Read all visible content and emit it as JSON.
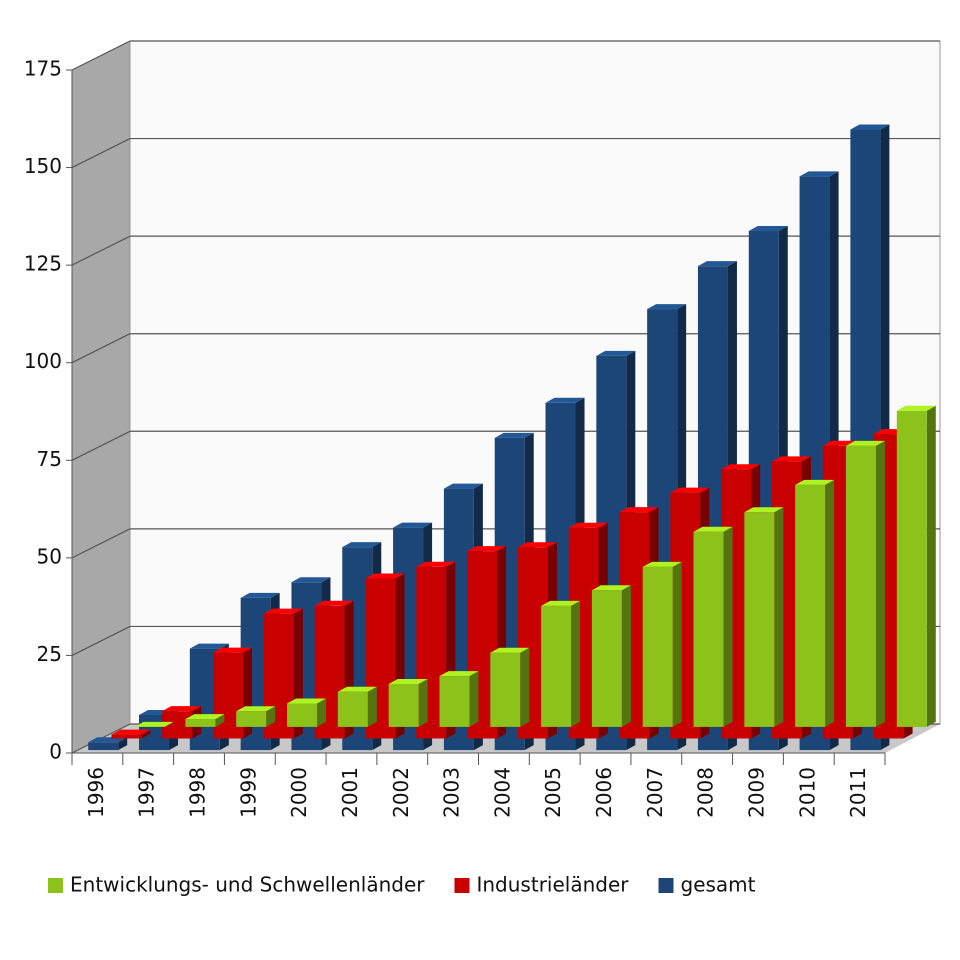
{
  "chart_data": {
    "type": "bar",
    "categories": [
      "1996",
      "1997",
      "1998",
      "1999",
      "2000",
      "2001",
      "2002",
      "2003",
      "2004",
      "2005",
      "2006",
      "2007",
      "2008",
      "2009",
      "2010",
      "2011"
    ],
    "series": [
      {
        "name": "Entwicklungs- und Schwellenländer",
        "color": "#8cc21a",
        "values": [
          0,
          2,
          4,
          6,
          9,
          11,
          13,
          19,
          31,
          35,
          41,
          50,
          55,
          62,
          72,
          81
        ]
      },
      {
        "name": "Industrieländer",
        "color": "#c80000",
        "values": [
          1,
          7,
          22,
          32,
          34,
          41,
          44,
          48,
          49,
          54,
          58,
          63,
          69,
          71,
          75,
          78
        ]
      },
      {
        "name": "gesamt",
        "color": "#1c4678",
        "values": [
          2,
          9,
          26,
          39,
          43,
          52,
          57,
          67,
          80,
          89,
          101,
          113,
          124,
          133,
          147,
          159
        ]
      }
    ],
    "ylim": [
      0,
      175
    ],
    "yticks": [
      0,
      25,
      50,
      75,
      100,
      125,
      150,
      175
    ],
    "grid": true
  }
}
